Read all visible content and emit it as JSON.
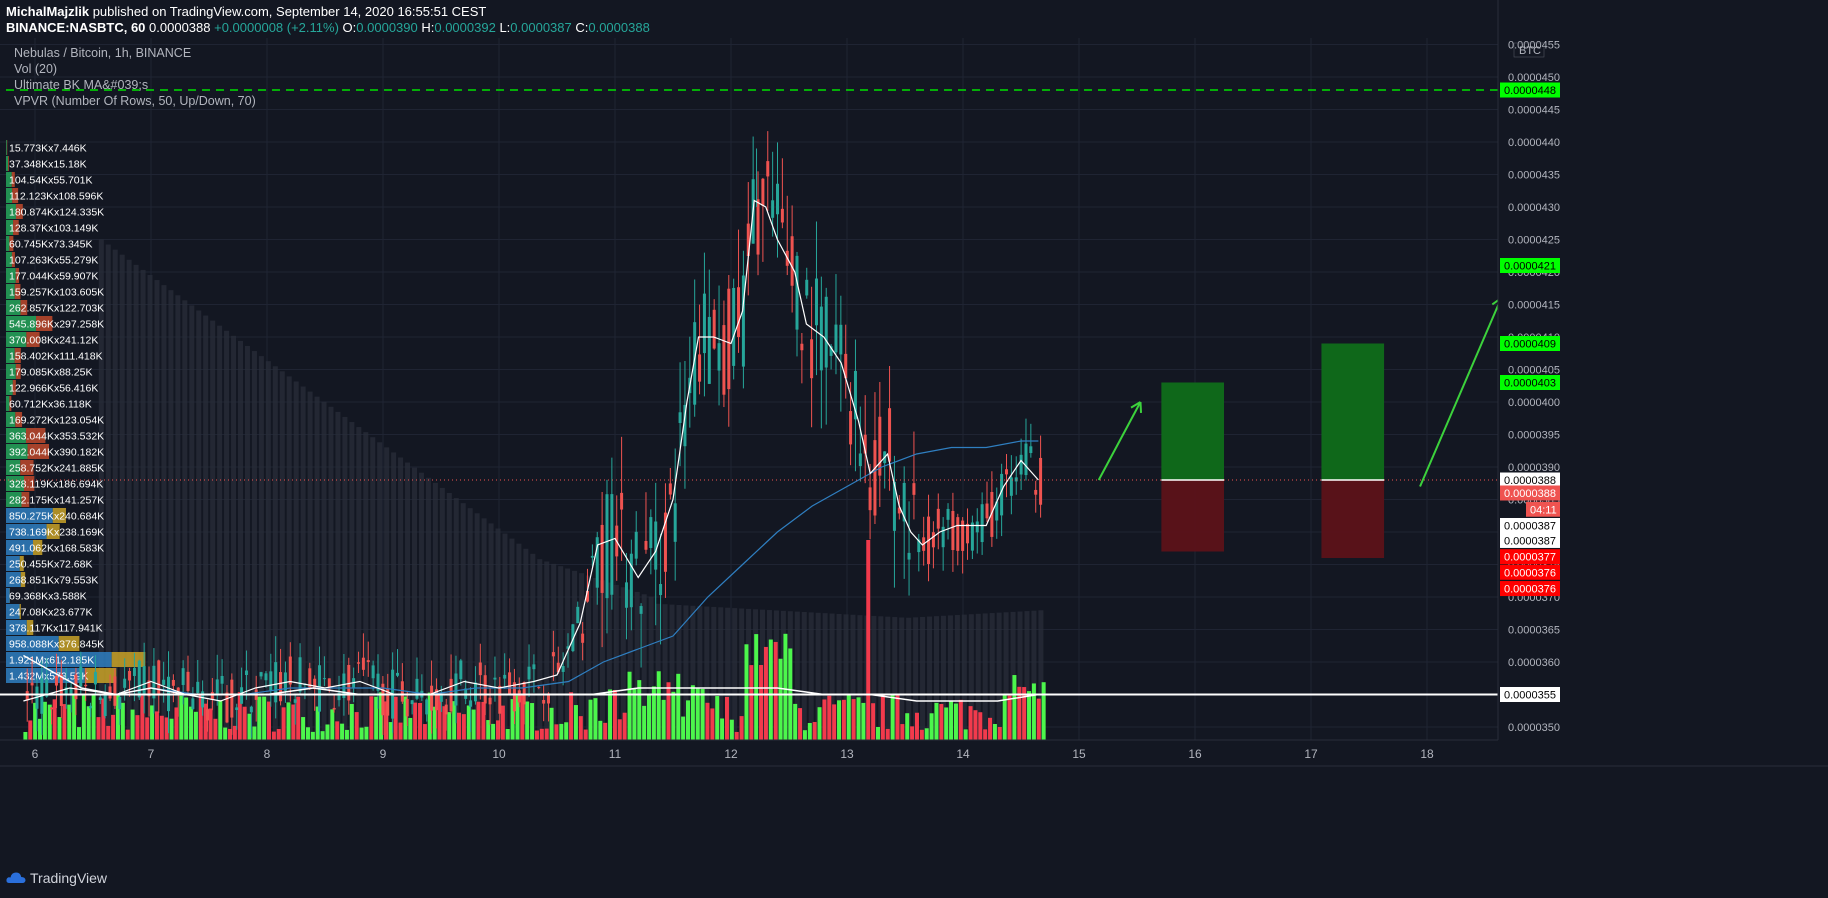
{
  "header": {
    "author": "MichalMajzlik",
    "published_text": "published on TradingView.com, September 14, 2020 16:55:51 CEST",
    "symbol_line": "BINANCE:NASBTC, 60",
    "last": "0.0000388",
    "change": "+0.0000008 (+2.11%)",
    "o_label": "O:",
    "o_value": "0.0000390",
    "h_label": "H:",
    "h_value": "0.0000392",
    "l_label": "L:",
    "l_value": "0.0000387",
    "c_label": "C:",
    "c_value": "0.0000388"
  },
  "overlay": {
    "title": "Nebulas / Bitcoin, 1h, BINANCE",
    "vol": "Vol (20)",
    "indicator": "Ultimate BK MA&#039;s",
    "vpvr": "VPVR (Number Of Rows, 50, Up/Down, 70)"
  },
  "footer": {
    "brand": "TradingView"
  },
  "colors": {
    "up": "#26a69a",
    "down": "#ef5350",
    "vol_up": "#4cf64c",
    "vol_down": "#f23a4c",
    "green_label": "#00ff00",
    "red_label": "#ff0000",
    "ma_blue": "#2f7fc1"
  },
  "chart_data": {
    "type": "candlestick",
    "yaxis_unit": "BTC",
    "ylim": [
      3.48e-05,
      4.56e-05
    ],
    "y_ticks": [
      "0.0000455",
      "0.0000450",
      "0.0000445",
      "0.0000440",
      "0.0000435",
      "0.0000430",
      "0.0000425",
      "0.0000420",
      "0.0000415",
      "0.0000410",
      "0.0000405",
      "0.0000400",
      "0.0000395",
      "0.0000390",
      "0.0000385",
      "0.0000380",
      "0.0000375",
      "0.0000370",
      "0.0000365",
      "0.0000360",
      "0.0000355",
      "0.0000350"
    ],
    "x_labels": [
      "6",
      "7",
      "8",
      "9",
      "10",
      "11",
      "12",
      "13",
      "14",
      "15",
      "16",
      "17",
      "18"
    ],
    "price_labels": [
      {
        "value": "0.0000448",
        "y": 4.48e-05,
        "style": "green"
      },
      {
        "value": "0.0000421",
        "y": 4.21e-05,
        "style": "green"
      },
      {
        "value": "0.0000409",
        "y": 4.09e-05,
        "style": "green"
      },
      {
        "value": "0.0000403",
        "y": 4.03e-05,
        "style": "green"
      },
      {
        "value": "0.0000388",
        "y": 3.88e-05,
        "style": "white"
      },
      {
        "value": "0.0000388",
        "y": 3.86e-05,
        "style": "redsoft"
      },
      {
        "value": "04:11",
        "y": 3.835e-05,
        "style": "redsoft"
      },
      {
        "value": "0.0000387",
        "y": 3.81e-05,
        "style": "white"
      },
      {
        "value": "0.0000387",
        "y": 3.787e-05,
        "style": "white"
      },
      {
        "value": "0.0000377",
        "y": 3.762e-05,
        "style": "red"
      },
      {
        "value": "0.0000376",
        "y": 3.738e-05,
        "style": "red"
      },
      {
        "value": "0.0000376",
        "y": 3.713e-05,
        "style": "red"
      },
      {
        "value": "0.0000355",
        "y": 3.55e-05,
        "style": "white"
      }
    ],
    "horizontal_lines": [
      {
        "y": 4.48e-05,
        "style": "green-dashed"
      },
      {
        "y": 3.88e-05,
        "style": "red-dotted"
      },
      {
        "y": 3.55e-05,
        "style": "white"
      }
    ],
    "close_path": [
      [
        5.9,
        3.54e-05
      ],
      [
        6.3,
        3.56e-05
      ],
      [
        6.7,
        3.55e-05
      ],
      [
        7.0,
        3.57e-05
      ],
      [
        7.3,
        3.55e-05
      ],
      [
        7.6,
        3.54e-05
      ],
      [
        7.9,
        3.56e-05
      ],
      [
        8.2,
        3.57e-05
      ],
      [
        8.5,
        3.56e-05
      ],
      [
        8.8,
        3.57e-05
      ],
      [
        9.1,
        3.55e-05
      ],
      [
        9.4,
        3.55e-05
      ],
      [
        9.7,
        3.57e-05
      ],
      [
        10.0,
        3.56e-05
      ],
      [
        10.3,
        3.57e-05
      ],
      [
        10.5,
        3.58e-05
      ],
      [
        10.7,
        3.66e-05
      ],
      [
        10.85,
        3.78e-05
      ],
      [
        11.0,
        3.79e-05
      ],
      [
        11.2,
        3.73e-05
      ],
      [
        11.35,
        3.77e-05
      ],
      [
        11.5,
        3.85e-05
      ],
      [
        11.62,
        4e-05
      ],
      [
        11.72,
        4.1e-05
      ],
      [
        11.85,
        4.1e-05
      ],
      [
        12.0,
        4.09e-05
      ],
      [
        12.1,
        4.14e-05
      ],
      [
        12.2,
        4.31e-05
      ],
      [
        12.3,
        4.3e-05
      ],
      [
        12.4,
        4.25e-05
      ],
      [
        12.55,
        4.2e-05
      ],
      [
        12.65,
        4.12e-05
      ],
      [
        12.8,
        4.1e-05
      ],
      [
        12.95,
        4.06e-05
      ],
      [
        13.1,
        3.97e-05
      ],
      [
        13.2,
        3.89e-05
      ],
      [
        13.35,
        3.92e-05
      ],
      [
        13.45,
        3.84e-05
      ],
      [
        13.55,
        3.8e-05
      ],
      [
        13.65,
        3.78e-05
      ],
      [
        13.8,
        3.8e-05
      ],
      [
        13.95,
        3.81e-05
      ],
      [
        14.05,
        3.81e-05
      ],
      [
        14.2,
        3.81e-05
      ],
      [
        14.35,
        3.87e-05
      ],
      [
        14.5,
        3.91e-05
      ],
      [
        14.65,
        3.88e-05
      ]
    ],
    "ema_path": [
      [
        5.9,
        3.55e-05
      ],
      [
        6.3,
        3.55e-05
      ],
      [
        6.7,
        3.55e-05
      ],
      [
        7.0,
        3.56e-05
      ],
      [
        7.4,
        3.55e-05
      ],
      [
        7.8,
        3.55e-05
      ],
      [
        8.2,
        3.56e-05
      ],
      [
        8.6,
        3.56e-05
      ],
      [
        9.0,
        3.56e-05
      ],
      [
        9.4,
        3.55e-05
      ],
      [
        9.8,
        3.56e-05
      ],
      [
        10.2,
        3.56e-05
      ],
      [
        10.6,
        3.57e-05
      ],
      [
        10.9,
        3.6e-05
      ],
      [
        11.2,
        3.62e-05
      ],
      [
        11.5,
        3.64e-05
      ],
      [
        11.8,
        3.7e-05
      ],
      [
        12.1,
        3.75e-05
      ],
      [
        12.4,
        3.8e-05
      ],
      [
        12.7,
        3.84e-05
      ],
      [
        13.0,
        3.87e-05
      ],
      [
        13.3,
        3.9e-05
      ],
      [
        13.6,
        3.92e-05
      ],
      [
        13.9,
        3.93e-05
      ],
      [
        14.2,
        3.93e-05
      ],
      [
        14.5,
        3.94e-05
      ],
      [
        14.65,
        3.94e-05
      ]
    ],
    "ma_white_path": [
      [
        5.9,
        3.61e-05
      ],
      [
        6.1,
        3.59e-05
      ],
      [
        6.4,
        3.56e-05
      ],
      [
        6.7,
        3.55e-05
      ],
      [
        7.0,
        3.56e-05
      ],
      [
        7.3,
        3.55e-05
      ],
      [
        7.6,
        3.55e-05
      ],
      [
        8.0,
        3.55e-05
      ],
      [
        8.4,
        3.56e-05
      ],
      [
        8.8,
        3.55e-05
      ],
      [
        9.2,
        3.55e-05
      ],
      [
        9.6,
        3.55e-05
      ],
      [
        10.0,
        3.55e-05
      ],
      [
        10.4,
        3.55e-05
      ],
      [
        10.8,
        3.55e-05
      ],
      [
        11.2,
        3.56e-05
      ],
      [
        11.6,
        3.56e-05
      ],
      [
        12.0,
        3.56e-05
      ],
      [
        12.4,
        3.56e-05
      ],
      [
        12.8,
        3.55e-05
      ],
      [
        13.2,
        3.55e-05
      ],
      [
        13.6,
        3.54e-05
      ],
      [
        14.0,
        3.54e-05
      ],
      [
        14.3,
        3.54e-05
      ],
      [
        14.65,
        3.55e-05
      ]
    ],
    "positions": [
      {
        "x0": 15.71,
        "x1": 16.25,
        "entry": 3.88e-05,
        "target": 4.03e-05,
        "stop": 3.77e-05
      },
      {
        "x0": 17.09,
        "x1": 17.63,
        "entry": 3.88e-05,
        "target": 4.09e-05,
        "stop": 3.76e-05
      }
    ],
    "arrows": [
      {
        "from": [
          15.17,
          3.88e-05
        ],
        "to": [
          15.53,
          4e-05
        ]
      },
      {
        "from": [
          17.94,
          3.87e-05
        ],
        "to": [
          18.64,
          4.16e-05
        ]
      }
    ],
    "vpvr": [
      {
        "label": "15.773Kx7.446K",
        "up": 15.773,
        "down": 7.446
      },
      {
        "label": "37.348Kx15.18K",
        "up": 37.348,
        "down": 15.18
      },
      {
        "label": "104.54Kx55.701K",
        "up": 104.54,
        "down": 55.701
      },
      {
        "label": "112.123Kx108.596K",
        "up": 112.123,
        "down": 108.596
      },
      {
        "label": "180.874Kx124.335K",
        "up": 180.874,
        "down": 124.335
      },
      {
        "label": "128.37Kx103.149K",
        "up": 128.37,
        "down": 103.149
      },
      {
        "label": "60.745Kx73.345K",
        "up": 60.745,
        "down": 73.345
      },
      {
        "label": "107.263Kx55.279K",
        "up": 107.263,
        "down": 55.279
      },
      {
        "label": "177.044Kx59.907K",
        "up": 177.044,
        "down": 59.907
      },
      {
        "label": "159.257Kx103.605K",
        "up": 159.257,
        "down": 103.605
      },
      {
        "label": "262.857Kx122.703K",
        "up": 262.857,
        "down": 122.703
      },
      {
        "label": "545.896Kx297.258K",
        "up": 545.896,
        "down": 297.258
      },
      {
        "label": "370.008Kx241.12K",
        "up": 370.008,
        "down": 241.12
      },
      {
        "label": "158.402Kx111.418K",
        "up": 158.402,
        "down": 111.418
      },
      {
        "label": "179.085Kx88.25K",
        "up": 179.085,
        "down": 88.25
      },
      {
        "label": "122.966Kx56.416K",
        "up": 122.966,
        "down": 56.416
      },
      {
        "label": "60.712Kx36.118K",
        "up": 60.712,
        "down": 36.118
      },
      {
        "label": "169.272Kx123.054K",
        "up": 169.272,
        "down": 123.054
      },
      {
        "label": "363.044Kx353.532K",
        "up": 363.044,
        "down": 353.532
      },
      {
        "label": "392.044Kx390.182K",
        "up": 392.044,
        "down": 390.182
      },
      {
        "label": "258.752Kx241.885K",
        "up": 258.752,
        "down": 241.885
      },
      {
        "label": "328.119Kx186.694K",
        "up": 328.119,
        "down": 186.694
      },
      {
        "label": "282.175Kx141.257K",
        "up": 282.175,
        "down": 141.257
      },
      {
        "label": "850.275Kx240.684K",
        "up": 850.275,
        "down": 240.684,
        "va": true
      },
      {
        "label": "738.169Kx238.169K",
        "up": 738.169,
        "down": 238.169,
        "va": true
      },
      {
        "label": "491.062Kx168.583K",
        "up": 491.062,
        "down": 168.583,
        "va": true
      },
      {
        "label": "250.455Kx72.68K",
        "up": 250.455,
        "down": 72.68,
        "va": true
      },
      {
        "label": "268.851Kx79.553K",
        "up": 268.851,
        "down": 79.553,
        "va": true
      },
      {
        "label": "69.368Kx3.588K",
        "up": 69.368,
        "down": 3.588,
        "va": true
      },
      {
        "label": "247.08Kx23.677K",
        "up": 247.08,
        "down": 23.677,
        "va": true
      },
      {
        "label": "378.117Kx117.941K",
        "up": 378.117,
        "down": 117.941,
        "va": true
      },
      {
        "label": "958.088Kx376.845K",
        "up": 958.088,
        "down": 376.845,
        "va": true
      },
      {
        "label": "1.921Mx612.185K",
        "up": 1921,
        "down": 612.185,
        "va": true
      },
      {
        "label": "1.432Mx573.59K",
        "up": 1432,
        "down": 573.59,
        "va": true
      }
    ]
  }
}
